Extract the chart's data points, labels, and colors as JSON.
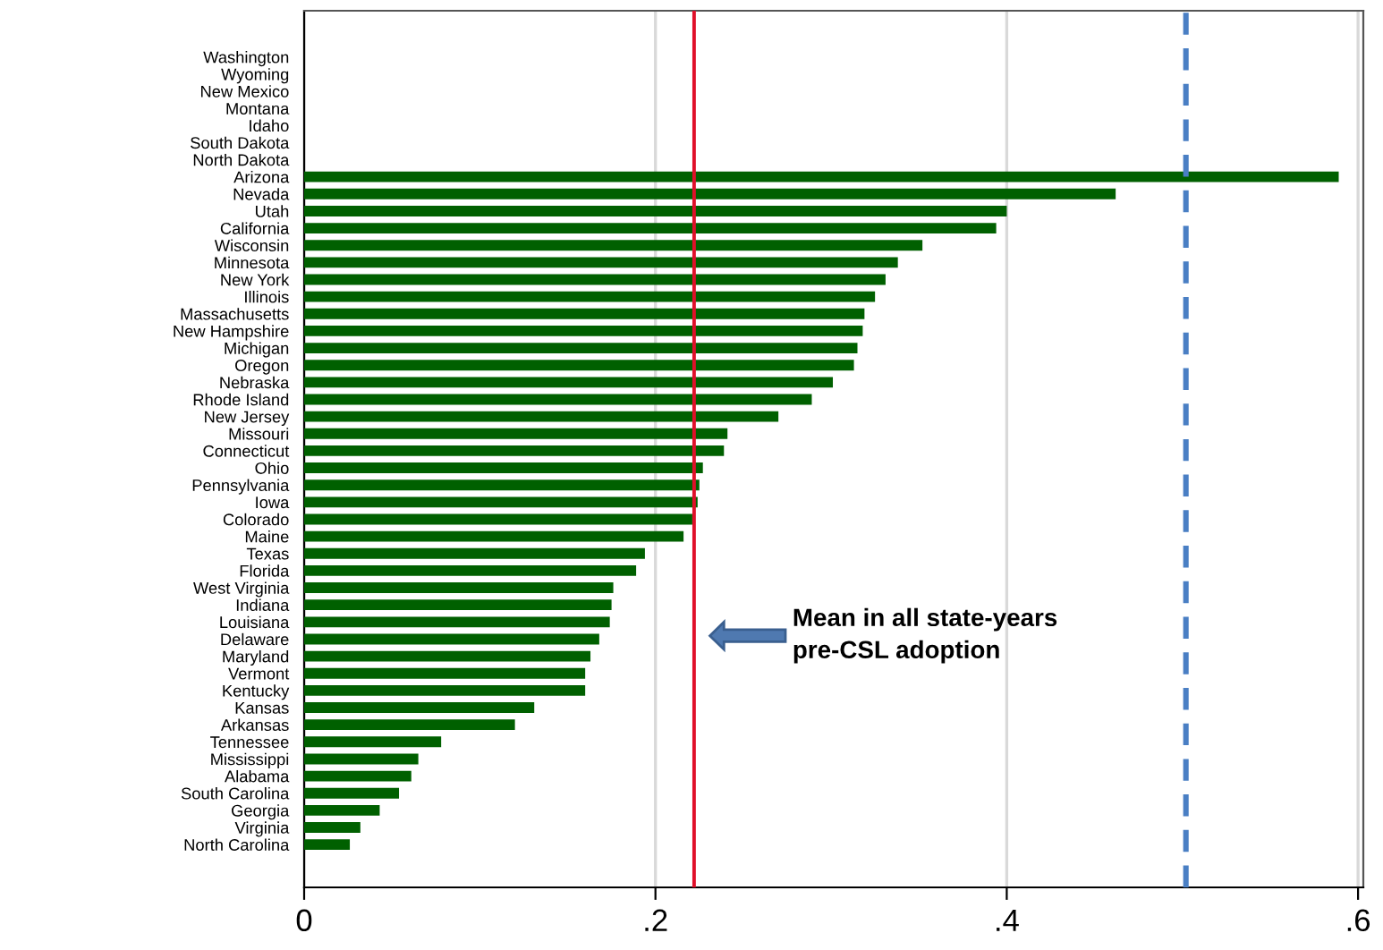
{
  "chart_data": {
    "type": "bar",
    "orientation": "horizontal",
    "categories": [
      "Washington",
      "Wyoming",
      "New Mexico",
      "Montana",
      "Idaho",
      "South Dakota",
      "North Dakota",
      "Arizona",
      "Nevada",
      "Utah",
      "California",
      "Wisconsin",
      "Minnesota",
      "New York",
      "Illinois",
      "Massachusetts",
      "New Hampshire",
      "Michigan",
      "Oregon",
      "Nebraska",
      "Rhode Island",
      "New Jersey",
      "Missouri",
      "Connecticut",
      "Ohio",
      "Pennsylvania",
      "Iowa",
      "Colorado",
      "Maine",
      "Texas",
      "Florida",
      "West Virginia",
      "Indiana",
      "Louisiana",
      "Delaware",
      "Maryland",
      "Vermont",
      "Kentucky",
      "Kansas",
      "Arkansas",
      "Tennessee",
      "Mississippi",
      "Alabama",
      "South Carolina",
      "Georgia",
      "Virginia",
      "North Carolina"
    ],
    "values": [
      null,
      null,
      null,
      null,
      null,
      null,
      null,
      0.589,
      0.462,
      0.4,
      0.394,
      0.352,
      0.338,
      0.331,
      0.325,
      0.319,
      0.318,
      0.315,
      0.313,
      0.301,
      0.289,
      0.27,
      0.241,
      0.239,
      0.227,
      0.225,
      0.224,
      0.221,
      0.216,
      0.194,
      0.189,
      0.176,
      0.175,
      0.174,
      0.168,
      0.163,
      0.16,
      0.16,
      0.131,
      0.12,
      0.078,
      0.065,
      0.061,
      0.054,
      0.043,
      0.032,
      0.026
    ],
    "color": "#006000",
    "xlim": [
      0,
      0.603
    ],
    "xticks": [
      {
        "value": 0,
        "label": "0"
      },
      {
        "value": 0.2,
        "label": ".2"
      },
      {
        "value": 0.4,
        "label": ".4"
      },
      {
        "value": 0.6,
        "label": ".6"
      }
    ],
    "grid": "x",
    "annotations": [
      "Mean in all state-years\npre-CSL adoption"
    ],
    "ref_lines": [
      {
        "axis": "x",
        "value": 0.222,
        "color": "#e0102a",
        "line_style": "solid"
      },
      {
        "axis": "x",
        "value": 0.502,
        "color": "#4a7fc4",
        "line_style": "dashed"
      }
    ]
  }
}
